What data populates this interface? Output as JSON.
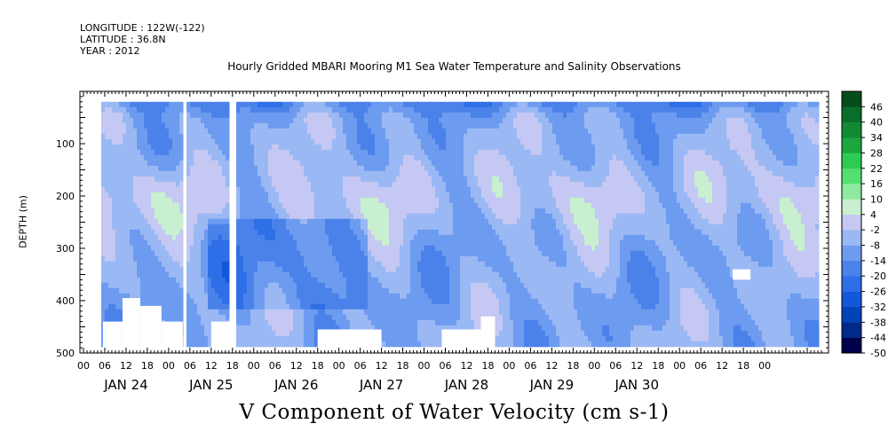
{
  "header": {
    "longitude": "LONGITUDE : 122W(-122)",
    "latitude": "LATITUDE : 36.8N",
    "year": "YEAR : 2012"
  },
  "chart_data": {
    "type": "heatmap",
    "title": "Hourly Gridded MBARI Mooring M1 Sea Water Temperature and Salinity Observations",
    "bottom_title": "V Component of Water Velocity (cm s-1)",
    "xlabel": "",
    "ylabel": "DEPTH (m)",
    "x_range_hours": [
      -1,
      210
    ],
    "y_range": [
      500,
      0
    ],
    "y_ticks": [
      100,
      200,
      300,
      400,
      500
    ],
    "x_hour_tick_labels": [
      "00",
      "06",
      "12",
      "18",
      "00",
      "06",
      "12",
      "18",
      "00",
      "06",
      "12",
      "18",
      "00",
      "06",
      "12",
      "18",
      "00",
      "06",
      "12",
      "18",
      "00",
      "06",
      "12",
      "18",
      "00",
      "06",
      "12",
      "18",
      "00",
      "06",
      "12",
      "18",
      "00"
    ],
    "x_day_labels": [
      "JAN 24",
      "JAN 25",
      "JAN 26",
      "JAN 27",
      "JAN 28",
      "JAN 29",
      "JAN 30"
    ],
    "colorbar": {
      "levels": [
        -50,
        -44,
        -38,
        -32,
        -26,
        -20,
        -14,
        -8,
        -2,
        4,
        10,
        16,
        22,
        28,
        34,
        40,
        46
      ],
      "colors": [
        "#00004a",
        "#002a8a",
        "#0044b8",
        "#1258d8",
        "#2e6ee6",
        "#4a82ea",
        "#6d9bf0",
        "#9ab8f4",
        "#c4c8f2",
        "#c8f0d0",
        "#8eea9e",
        "#54e070",
        "#2ccc52",
        "#1ca63e",
        "#128a34",
        "#0a6e2a",
        "#044e1c"
      ]
    },
    "grid": false,
    "legend": "colorbar-right"
  }
}
